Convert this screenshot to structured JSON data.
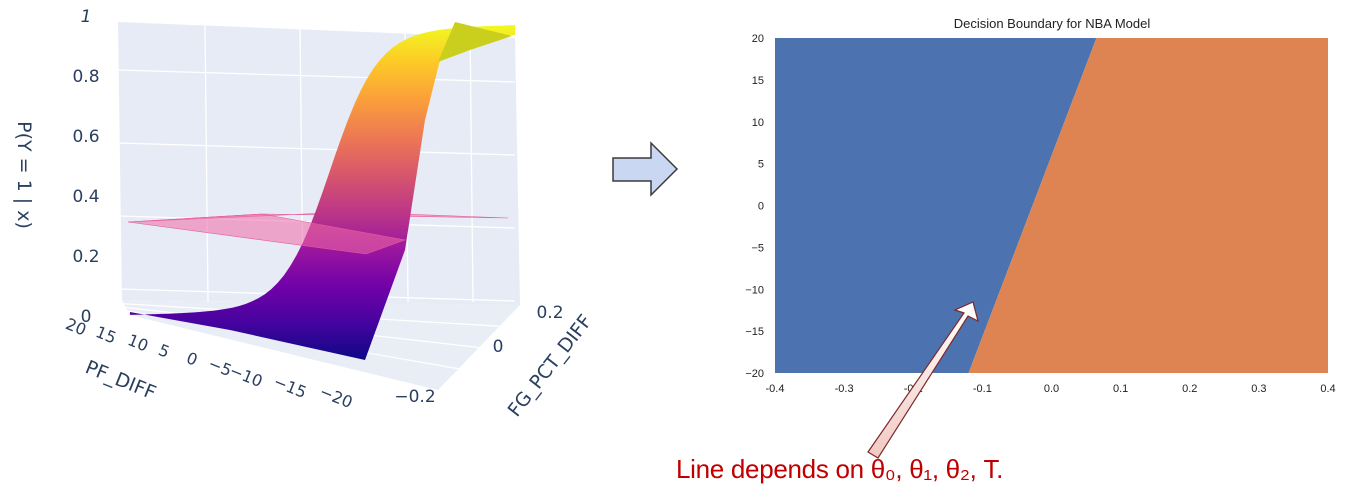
{
  "chart_data": [
    {
      "type": "surface",
      "zlabel": "P(Y = 1 | x)",
      "xlabel": "PF_DIFF",
      "ylabel": "FG_PCT_DIFF",
      "z_ticks": [
        "0",
        "0.2",
        "0.4",
        "0.6",
        "0.8",
        "1"
      ],
      "pf_ticks": [
        "20",
        "15",
        "10",
        "5",
        "0",
        "−5",
        "−10",
        "−15",
        "−20"
      ],
      "fg_ticks": [
        "0.2",
        "0",
        "−0.2"
      ],
      "zlim": [
        0,
        1
      ],
      "xlim": [
        -20,
        20
      ],
      "ylim": [
        -0.25,
        0.25
      ],
      "threshold_plane_level": 0.35,
      "colors": {
        "pane": "#e6ebf5",
        "grid": "#ffffff",
        "plane": "#f06aa8",
        "axis_text": "#2a3f5f"
      },
      "colorscale": [
        "#0d0887",
        "#46039f",
        "#7201a8",
        "#9c179e",
        "#bd3786",
        "#d8576b",
        "#ed7953",
        "#fb9f3a",
        "#fdca26",
        "#f0f921"
      ]
    },
    {
      "type": "heatmap",
      "title": "Decision Boundary for NBA Model",
      "x_ticks": [
        "-0.4",
        "-0.3",
        "-0.2",
        "-0.1",
        "0.0",
        "0.1",
        "0.2",
        "0.3",
        "0.4"
      ],
      "y_ticks": [
        "20",
        "15",
        "10",
        "5",
        "0",
        "−5",
        "−10",
        "−15",
        "−20"
      ],
      "xlim": [
        -0.4,
        0.4
      ],
      "ylim": [
        -20,
        20
      ],
      "boundary": [
        [
          -0.12,
          -20
        ],
        [
          0.065,
          20
        ]
      ],
      "regions": [
        {
          "side": "left",
          "color": "#4c72b0"
        },
        {
          "side": "right",
          "color": "#dd8452"
        }
      ],
      "grid": false
    }
  ],
  "annotation": {
    "text": "Line depends on θ₀, θ₁, θ₂, T.",
    "color": "#c00000"
  },
  "arrow_color": "#c9d7f2"
}
